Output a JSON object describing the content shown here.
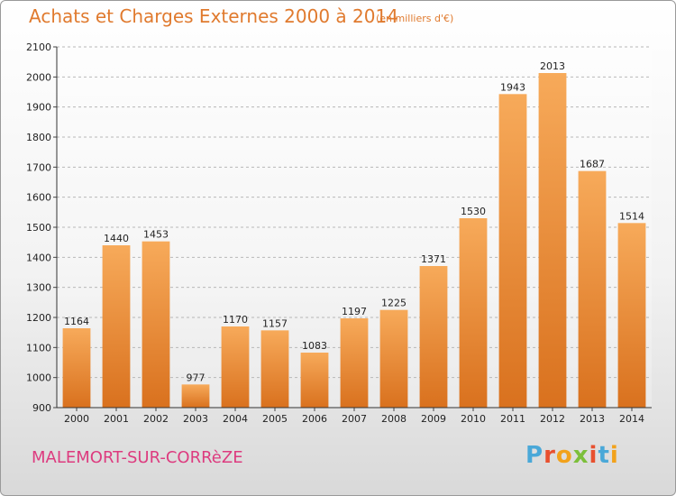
{
  "header": {
    "title": "Achats et Charges Externes 2000 à 2014",
    "unit": "(en milliers d'€)"
  },
  "footer": {
    "place": "MALEMORT-SUR-CORRèZE",
    "logo_letters": [
      "P",
      "r",
      "o",
      "x",
      "i",
      "t",
      "i"
    ],
    "logo_colors": [
      "#4aa8d8",
      "#e8502f",
      "#f2a21b",
      "#7cbf3a",
      "#e8502f",
      "#4aa8d8",
      "#f2a21b"
    ]
  },
  "colors": {
    "bar_light": "#f7aa5a",
    "bar_dark": "#d9711e",
    "accent": "#e07a2e"
  },
  "chart_data": {
    "type": "bar",
    "title": "Achats et Charges Externes 2000 à 2014",
    "subtitle": "(en milliers d'€)",
    "categories": [
      "2000",
      "2001",
      "2002",
      "2003",
      "2004",
      "2005",
      "2006",
      "2007",
      "2008",
      "2009",
      "2010",
      "2011",
      "2012",
      "2013",
      "2014"
    ],
    "values": [
      1164,
      1440,
      1453,
      977,
      1170,
      1157,
      1083,
      1197,
      1225,
      1371,
      1530,
      1943,
      2013,
      1687,
      1514
    ],
    "ylim": [
      900,
      2100
    ],
    "yticks": [
      900,
      1000,
      1100,
      1200,
      1300,
      1400,
      1500,
      1600,
      1700,
      1800,
      1900,
      2000,
      2100
    ],
    "grid": true,
    "data_labels": true
  }
}
